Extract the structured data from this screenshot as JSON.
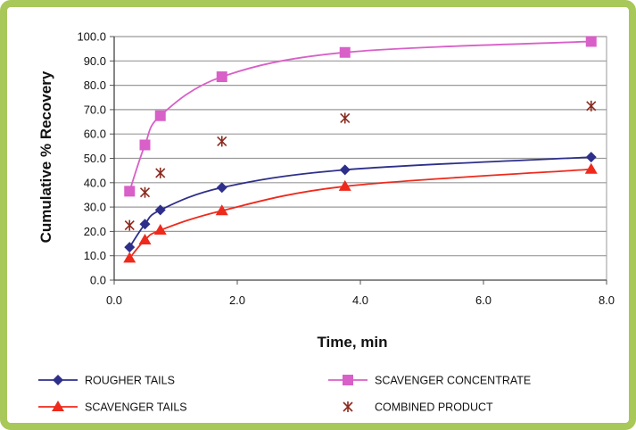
{
  "chart_data": {
    "type": "line",
    "title": "",
    "xlabel": "Time, min",
    "ylabel": "Cumulative % Recovery",
    "xlim": [
      0,
      8
    ],
    "ylim": [
      0,
      100
    ],
    "x_ticks": [
      "0.0",
      "2.0",
      "4.0",
      "6.0",
      "8.0"
    ],
    "y_ticks": [
      "0.0",
      "10.0",
      "20.0",
      "30.0",
      "40.0",
      "50.0",
      "60.0",
      "70.0",
      "80.0",
      "90.0",
      "100.0"
    ],
    "grid": "horizontal",
    "legend_position": "bottom",
    "series": [
      {
        "name": "ROUGHER TAILS",
        "color": "#2e2f8a",
        "marker": "diamond",
        "line": true,
        "x": [
          0.25,
          0.5,
          0.75,
          1.75,
          3.75,
          7.75
        ],
        "y": [
          13.5,
          23.0,
          28.8,
          38.0,
          45.3,
          50.5
        ]
      },
      {
        "name": "SCAVENGER CONCENTRATE",
        "color": "#d860c8",
        "marker": "square",
        "line": true,
        "x": [
          0.25,
          0.5,
          0.75,
          1.75,
          3.75,
          7.75
        ],
        "y": [
          36.5,
          55.5,
          67.5,
          83.5,
          93.5,
          98.0
        ]
      },
      {
        "name": "SCAVENGER TAILS",
        "color": "#ee2a1c",
        "marker": "triangle",
        "line": true,
        "x": [
          0.25,
          0.5,
          0.75,
          1.75,
          3.75,
          7.75
        ],
        "y": [
          9.0,
          16.5,
          20.5,
          28.5,
          38.5,
          45.5
        ]
      },
      {
        "name": "COMBINED PRODUCT",
        "color": "#8b2a1e",
        "marker": "asterisk",
        "line": false,
        "x": [
          0.25,
          0.5,
          0.75,
          1.75,
          3.75,
          7.75
        ],
        "y": [
          22.5,
          36.0,
          44.0,
          57.0,
          66.5,
          71.5
        ]
      }
    ]
  }
}
